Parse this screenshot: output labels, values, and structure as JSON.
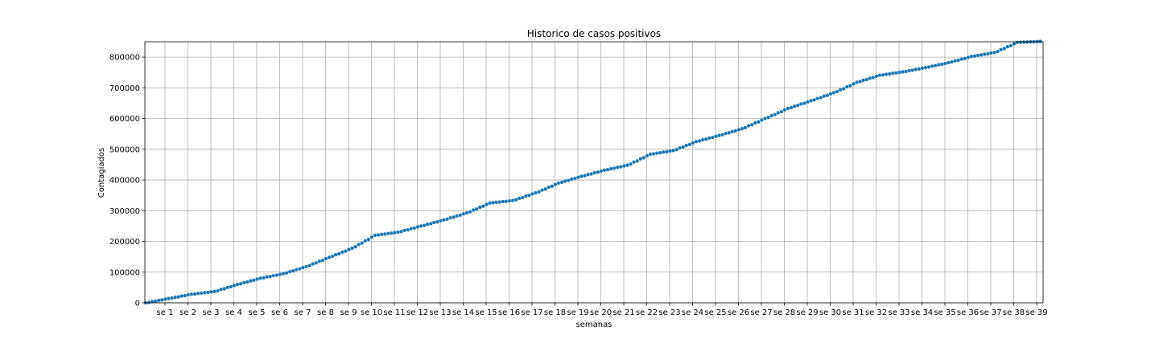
{
  "chart_data": {
    "type": "scatter",
    "title": "Historico de casos positivos",
    "xlabel": "semanas",
    "ylabel": "Contagiados",
    "ylim": [
      0,
      850000
    ],
    "yticks": [
      0,
      100000,
      200000,
      300000,
      400000,
      500000,
      600000,
      700000,
      800000
    ],
    "ytick_labels": [
      "0",
      "100000",
      "200000",
      "300000",
      "400000",
      "500000",
      "600000",
      "700000",
      "800000"
    ],
    "xticks": [
      "se 1",
      "se 2",
      "se 3",
      "se 4",
      "se 5",
      "se 6",
      "se 7",
      "se 8",
      "se 9",
      "se 10",
      "se 11",
      "se 12",
      "se 13",
      "se 14",
      "se 15",
      "se 16",
      "se 17",
      "se 18",
      "se 19",
      "se 20",
      "se 21",
      "se 22",
      "se 23",
      "se 24",
      "se 25",
      "se 26",
      "se 27",
      "se 28",
      "se 29",
      "se 30",
      "se 31",
      "se 32",
      "se 33",
      "se 34",
      "se 35",
      "se 36",
      "se 37",
      "se 38",
      "se 39"
    ],
    "grid": true,
    "marker_color": "#1f77b4",
    "series": [
      {
        "weekly_values": [
          0,
          14000,
          28000,
          37000,
          60000,
          80000,
          95000,
          118000,
          148000,
          178000,
          220000,
          230000,
          250000,
          270000,
          293000,
          325000,
          333000,
          358000,
          390000,
          412000,
          432000,
          448000,
          484000,
          496000,
          525000,
          545000,
          567000,
          600000,
          633000,
          658000,
          684000,
          718000,
          741000,
          752000,
          766000,
          782000,
          802000,
          815000,
          848000,
          851000
        ]
      }
    ]
  }
}
